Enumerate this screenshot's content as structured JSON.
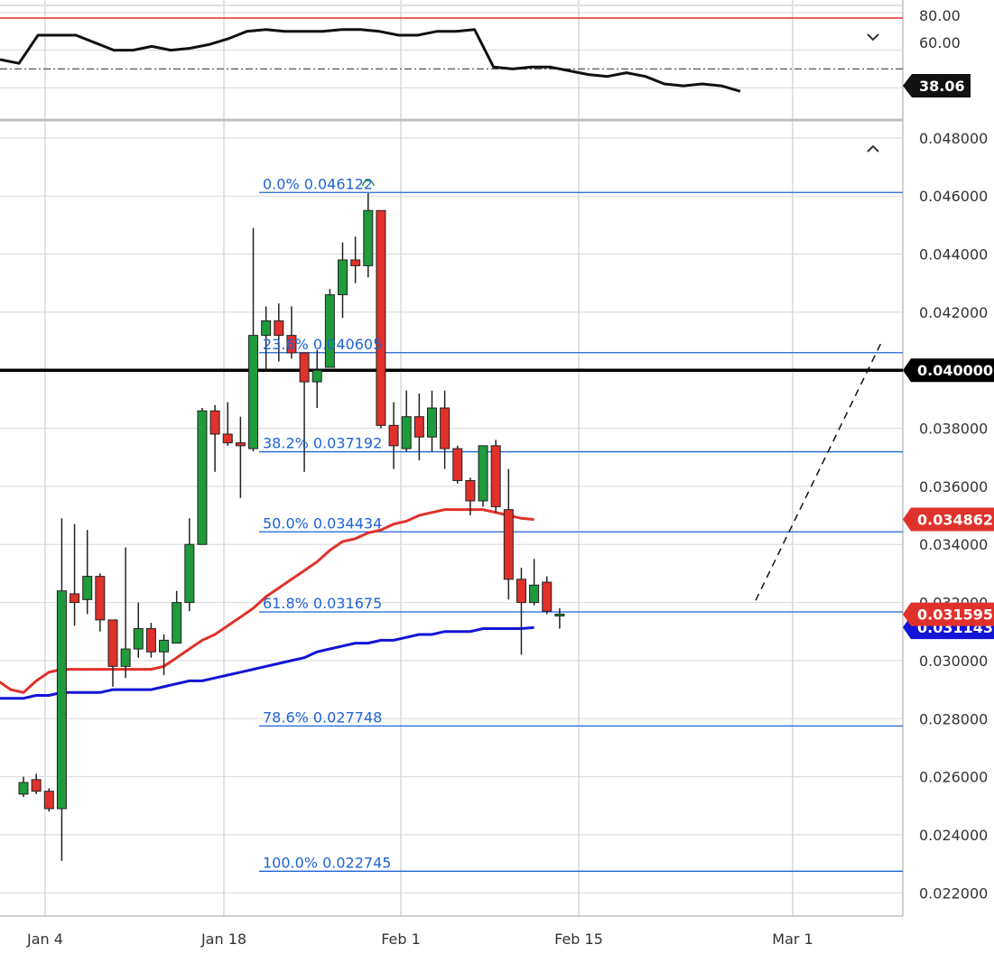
{
  "chart_data": [
    {
      "type": "line",
      "panel": "oscillator",
      "yticks": [
        "80.00",
        "60.00"
      ],
      "current_value_label": "38.06",
      "overbought_level": 70,
      "midline_level": 50,
      "values": [
        55,
        53,
        68,
        68,
        68,
        64,
        60,
        60,
        62,
        60,
        61,
        63,
        66,
        70,
        71,
        70,
        70,
        70,
        71,
        71,
        70,
        68,
        68,
        70,
        70,
        71,
        51,
        50,
        51,
        51,
        49,
        47,
        46,
        48,
        46,
        42,
        41,
        42,
        41,
        38.06
      ]
    },
    {
      "type": "candlestick",
      "panel": "price",
      "x_ticks": [
        "Jan 4",
        "Jan 18",
        "Feb 1",
        "Feb 15",
        "Mar 1"
      ],
      "y_ticks": [
        "0.048000",
        "0.046000",
        "0.044000",
        "0.042000",
        "0.040000",
        "0.038000",
        "0.036000",
        "0.034000",
        "0.032000",
        "0.030000",
        "0.028000",
        "0.026000",
        "0.024000",
        "0.022000"
      ],
      "ylim": [
        0.0212,
        0.0484
      ],
      "candles": [
        {
          "date": "Jan 1",
          "o": 0.0254,
          "h": 0.026,
          "l": 0.0253,
          "c": 0.0258
        },
        {
          "date": "Jan 2",
          "o": 0.0259,
          "h": 0.0261,
          "l": 0.0254,
          "c": 0.0255
        },
        {
          "date": "Jan 3",
          "o": 0.0255,
          "h": 0.0256,
          "l": 0.0248,
          "c": 0.0249
        },
        {
          "date": "Jan 4",
          "o": 0.0249,
          "h": 0.0349,
          "l": 0.0231,
          "c": 0.0324
        },
        {
          "date": "Jan 5",
          "o": 0.0323,
          "h": 0.0347,
          "l": 0.0312,
          "c": 0.032
        },
        {
          "date": "Jan 6",
          "o": 0.0321,
          "h": 0.0345,
          "l": 0.0316,
          "c": 0.0329
        },
        {
          "date": "Jan 7",
          "o": 0.0329,
          "h": 0.033,
          "l": 0.031,
          "c": 0.0314
        },
        {
          "date": "Jan 8",
          "o": 0.0314,
          "h": 0.0313,
          "l": 0.0291,
          "c": 0.0298
        },
        {
          "date": "Jan 9",
          "o": 0.0298,
          "h": 0.0339,
          "l": 0.0294,
          "c": 0.0304
        },
        {
          "date": "Jan 10",
          "o": 0.0304,
          "h": 0.032,
          "l": 0.0301,
          "c": 0.0311
        },
        {
          "date": "Jan 11",
          "o": 0.0311,
          "h": 0.0313,
          "l": 0.0301,
          "c": 0.0303
        },
        {
          "date": "Jan 12",
          "o": 0.0303,
          "h": 0.0309,
          "l": 0.0295,
          "c": 0.0307
        },
        {
          "date": "Jan 13",
          "o": 0.0306,
          "h": 0.0324,
          "l": 0.0306,
          "c": 0.032
        },
        {
          "date": "Jan 14",
          "o": 0.032,
          "h": 0.0349,
          "l": 0.0317,
          "c": 0.034
        },
        {
          "date": "Jan 15",
          "o": 0.034,
          "h": 0.0387,
          "l": 0.034,
          "c": 0.0386
        },
        {
          "date": "Jan 16",
          "o": 0.0386,
          "h": 0.0388,
          "l": 0.0365,
          "c": 0.0378
        },
        {
          "date": "Jan 17",
          "o": 0.0378,
          "h": 0.0389,
          "l": 0.0374,
          "c": 0.0375
        },
        {
          "date": "Jan 18",
          "o": 0.0375,
          "h": 0.0384,
          "l": 0.0356,
          "c": 0.0374
        },
        {
          "date": "Jan 19",
          "o": 0.0373,
          "h": 0.0449,
          "l": 0.0372,
          "c": 0.0412
        },
        {
          "date": "Jan 20",
          "o": 0.0412,
          "h": 0.0422,
          "l": 0.04,
          "c": 0.0417
        },
        {
          "date": "Jan 21",
          "o": 0.0417,
          "h": 0.0423,
          "l": 0.0403,
          "c": 0.0412
        },
        {
          "date": "Jan 22",
          "o": 0.0412,
          "h": 0.0422,
          "l": 0.0404,
          "c": 0.0406
        },
        {
          "date": "Jan 23",
          "o": 0.0406,
          "h": 0.0404,
          "l": 0.0365,
          "c": 0.0396
        },
        {
          "date": "Jan 24",
          "o": 0.0396,
          "h": 0.0407,
          "l": 0.0387,
          "c": 0.04
        },
        {
          "date": "Jan 25",
          "o": 0.0401,
          "h": 0.0428,
          "l": 0.0401,
          "c": 0.0426
        },
        {
          "date": "Jan 26",
          "o": 0.0426,
          "h": 0.0444,
          "l": 0.0418,
          "c": 0.0438
        },
        {
          "date": "Jan 27",
          "o": 0.0438,
          "h": 0.0446,
          "l": 0.043,
          "c": 0.0436
        },
        {
          "date": "Jan 28",
          "o": 0.0436,
          "h": 0.0461,
          "l": 0.0432,
          "c": 0.0455
        },
        {
          "date": "Jan 29",
          "o": 0.0455,
          "h": 0.0455,
          "l": 0.038,
          "c": 0.0381
        },
        {
          "date": "Jan 30",
          "o": 0.0381,
          "h": 0.0389,
          "l": 0.0366,
          "c": 0.0374
        },
        {
          "date": "Jan 31",
          "o": 0.0373,
          "h": 0.0393,
          "l": 0.0372,
          "c": 0.0384
        },
        {
          "date": "Feb 1",
          "o": 0.0384,
          "h": 0.0392,
          "l": 0.0369,
          "c": 0.0377
        },
        {
          "date": "Feb 2",
          "o": 0.0377,
          "h": 0.0393,
          "l": 0.0372,
          "c": 0.0387
        },
        {
          "date": "Feb 3",
          "o": 0.0387,
          "h": 0.0393,
          "l": 0.0366,
          "c": 0.0373
        },
        {
          "date": "Feb 4",
          "o": 0.0373,
          "h": 0.0374,
          "l": 0.0361,
          "c": 0.0362
        },
        {
          "date": "Feb 5",
          "o": 0.0362,
          "h": 0.0363,
          "l": 0.035,
          "c": 0.0355
        },
        {
          "date": "Feb 6",
          "o": 0.0355,
          "h": 0.0374,
          "l": 0.0353,
          "c": 0.0374
        },
        {
          "date": "Feb 7",
          "o": 0.0374,
          "h": 0.0376,
          "l": 0.0351,
          "c": 0.0353
        },
        {
          "date": "Feb 8",
          "o": 0.0352,
          "h": 0.0366,
          "l": 0.0321,
          "c": 0.0328
        },
        {
          "date": "Feb 9",
          "o": 0.0328,
          "h": 0.0332,
          "l": 0.0302,
          "c": 0.032
        },
        {
          "date": "Feb 10",
          "o": 0.032,
          "h": 0.0335,
          "l": 0.0319,
          "c": 0.0326
        },
        {
          "date": "Feb 11",
          "o": 0.0327,
          "h": 0.0329,
          "l": 0.0316,
          "c": 0.0317
        },
        {
          "date": "Feb 12",
          "o": 0.0316,
          "h": 0.0318,
          "l": 0.0311,
          "c": 0.0316
        }
      ],
      "ema_red": [
        0.0293,
        0.029,
        0.0289,
        0.0293,
        0.0296,
        0.0297,
        0.0297,
        0.0297,
        0.0297,
        0.0297,
        0.0297,
        0.0297,
        0.0297,
        0.0298,
        0.0301,
        0.0304,
        0.0307,
        0.0309,
        0.0312,
        0.0315,
        0.0318,
        0.0322,
        0.0325,
        0.0328,
        0.0331,
        0.0334,
        0.0338,
        0.0341,
        0.0342,
        0.0344,
        0.0345,
        0.0347,
        0.0348,
        0.035,
        0.0351,
        0.0352,
        0.0352,
        0.0352,
        0.0352,
        0.0351,
        0.035,
        0.0349,
        0.03486
      ],
      "ema_blue": [
        0.0287,
        0.0287,
        0.0287,
        0.0288,
        0.0288,
        0.0289,
        0.0289,
        0.0289,
        0.0289,
        0.029,
        0.029,
        0.029,
        0.029,
        0.0291,
        0.0292,
        0.0293,
        0.0293,
        0.0294,
        0.0295,
        0.0296,
        0.0297,
        0.0298,
        0.0299,
        0.03,
        0.0301,
        0.0303,
        0.0304,
        0.0305,
        0.0306,
        0.0306,
        0.0307,
        0.0307,
        0.0308,
        0.0309,
        0.0309,
        0.031,
        0.031,
        0.031,
        0.0311,
        0.0311,
        0.0311,
        0.0311,
        0.03114
      ],
      "fib_levels": [
        {
          "label": "0.0% 0.046122",
          "value": 0.046122
        },
        {
          "label": "23.6% 0.040605",
          "value": 0.040605
        },
        {
          "label": "38.2% 0.037192",
          "value": 0.037192
        },
        {
          "label": "50.0% 0.034434",
          "value": 0.034434
        },
        {
          "label": "61.8% 0.031675",
          "value": 0.031675
        },
        {
          "label": "78.6% 0.027748",
          "value": 0.027748
        },
        {
          "label": "100.0% 0.022745",
          "value": 0.022745
        }
      ],
      "horizontal_line": {
        "value": 0.04,
        "label": "0.040000"
      },
      "price_badges": [
        {
          "label": "0.034862",
          "value": 0.034862,
          "color": "#e0312b"
        },
        {
          "label": "0.031595",
          "value": 0.031595,
          "color": "#e0312b"
        },
        {
          "label": "0.031143",
          "value": 0.031143,
          "color": "#1414d6"
        }
      ],
      "projection": {
        "from": {
          "date": "Feb 12",
          "value": 0.0317
        },
        "to": {
          "date": "Feb 20",
          "value": 0.0393
        }
      },
      "colors": {
        "up": "#1f9a3c",
        "down": "#e0312b",
        "ema_red": "#e0312b",
        "ema_blue": "#1414d6",
        "fib": "#1e63d6",
        "grid": "#d8d8d8"
      }
    }
  ]
}
